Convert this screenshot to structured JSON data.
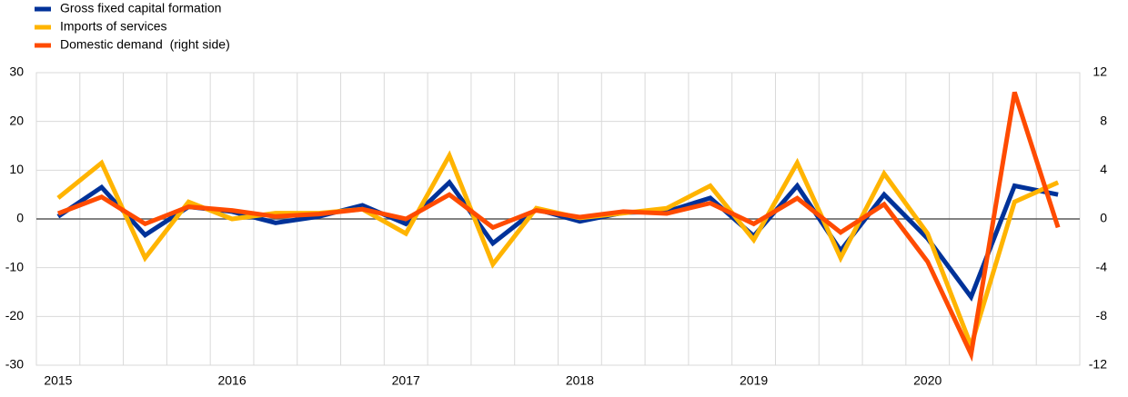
{
  "chart_data": {
    "type": "line",
    "categories": [
      "2015",
      null,
      null,
      null,
      "2016",
      null,
      null,
      null,
      "2017",
      null,
      null,
      null,
      "2018",
      null,
      null,
      null,
      "2019",
      null,
      null,
      null,
      "2020",
      null,
      null,
      null
    ],
    "series": [
      {
        "name": "Gross fixed capital formation",
        "color": "#003299",
        "values": [
          0.5,
          6.5,
          -3.3,
          2.5,
          1.5,
          -0.8,
          0.5,
          2.8,
          -1,
          7.5,
          -5,
          2,
          -0.5,
          1.3,
          1.5,
          4.3,
          -3.5,
          6.8,
          -6.5,
          5,
          -4,
          -16,
          6.8,
          5
        ]
      },
      {
        "name": "Imports of services",
        "color": "#ffb400",
        "values": [
          4.3,
          11.5,
          -8,
          3.5,
          0,
          1.2,
          1.2,
          2,
          -3,
          13,
          -9.3,
          2.2,
          0.2,
          1.2,
          2.2,
          6.8,
          -4.3,
          11.5,
          -8,
          9.3,
          -3,
          -26,
          3.5,
          7.5
        ]
      },
      {
        "name": "Domestic demand  (right side)",
        "color": "#ff4b00",
        "axis": "y2",
        "values": [
          0.45,
          1.8,
          -0.4,
          1,
          0.7,
          0.2,
          0.4,
          0.8,
          0,
          2,
          -0.7,
          0.7,
          0.15,
          0.6,
          0.45,
          1.3,
          -0.4,
          1.7,
          -1.1,
          1.2,
          -3.5,
          -11.1,
          10.4,
          -0.7
        ]
      }
    ],
    "ylim": [
      -30,
      30
    ],
    "yticks": [
      -30,
      -20,
      -10,
      0,
      10,
      20,
      30
    ],
    "y2lim": [
      -12,
      12
    ],
    "y2ticks": [
      -12,
      -8,
      -4,
      0,
      4,
      8,
      12
    ],
    "grid": true
  }
}
